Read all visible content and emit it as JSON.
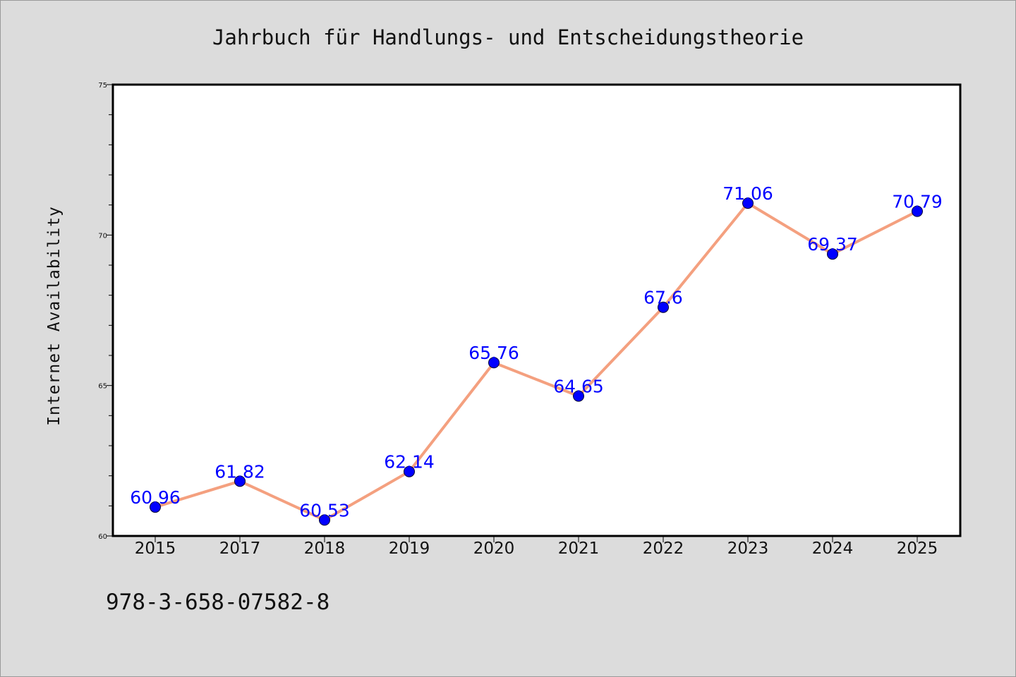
{
  "page": {
    "title": "Jahrbuch für Handlungs- und Entscheidungstheorie",
    "footer": "978-3-658-07582-8"
  },
  "colors": {
    "background": "#dcdcdc",
    "plot_background": "#ffffff",
    "line": "#f4a07f",
    "marker": "#0000ff",
    "data_label": "#0000ff"
  },
  "chart_data": {
    "type": "line",
    "title": "Jahrbuch für Handlungs- und Entscheidungstheorie",
    "xlabel": "",
    "ylabel": "Internet Availability",
    "categories": [
      "2015",
      "2017",
      "2018",
      "2019",
      "2020",
      "2021",
      "2022",
      "2023",
      "2024",
      "2025"
    ],
    "series": [
      {
        "values": [
          60.96,
          61.82,
          60.53,
          62.14,
          65.76,
          64.65,
          67.6,
          71.06,
          69.37,
          70.79
        ],
        "labels": [
          "60.96",
          "61.82",
          "60.53",
          "62.14",
          "65.76",
          "64.65",
          "67.6",
          "71.06",
          "69.37",
          "70.79"
        ]
      }
    ],
    "ylim": [
      60,
      75
    ],
    "yticks": [
      60,
      65,
      70,
      75
    ],
    "yminor_step": 1,
    "grid": false,
    "legend": "none"
  }
}
